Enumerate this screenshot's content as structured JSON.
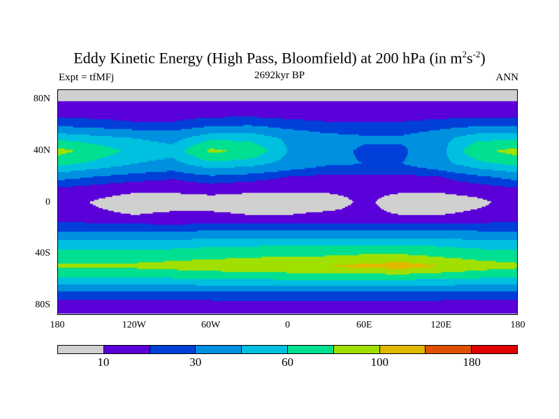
{
  "title": "Eddy Kinetic Energy (High Pass, Bloomfield) at 200 hPa (in m",
  "title_sup1": "2",
  "title_mid": "s",
  "title_sup2": "-2",
  "title_end": ")",
  "left_label": "Expt = tfMFj",
  "center_label": "2692kyr BP",
  "right_label": "ANN",
  "chart_data": {
    "type": "heatmap",
    "y_ticks": [
      {
        "lat": 80,
        "label": "80N"
      },
      {
        "lat": 40,
        "label": "40N"
      },
      {
        "lat": 0,
        "label": "0"
      },
      {
        "lat": -40,
        "label": "40S"
      },
      {
        "lat": -80,
        "label": "80S"
      }
    ],
    "x_ticks": [
      {
        "lon": -180,
        "label": "180"
      },
      {
        "lon": -120,
        "label": "120W"
      },
      {
        "lon": -60,
        "label": "60W"
      },
      {
        "lon": 0,
        "label": "0"
      },
      {
        "lon": 60,
        "label": "60E"
      },
      {
        "lon": 120,
        "label": "120E"
      },
      {
        "lon": 180,
        "label": "180"
      }
    ],
    "levels": [
      10,
      20,
      30,
      45,
      60,
      80,
      100,
      140,
      180
    ],
    "colorbar_labels": [
      {
        "index": 0,
        "label": "10"
      },
      {
        "index": 2,
        "label": "30"
      },
      {
        "index": 4,
        "label": "60"
      },
      {
        "index": 6,
        "label": "100"
      },
      {
        "index": 8,
        "label": "180"
      }
    ],
    "colors": [
      "#d0d0d0",
      "#5a00d8",
      "#0040d8",
      "#0090e0",
      "#00c0e0",
      "#00e090",
      "#a0e000",
      "#e0b800",
      "#e05000",
      "#e00000"
    ],
    "lats": [
      90,
      80,
      70,
      60,
      50,
      40,
      30,
      20,
      10,
      0,
      -10,
      -20,
      -30,
      -40,
      -50,
      -60,
      -70,
      -80,
      -90
    ],
    "lons": [
      -180,
      -150,
      -120,
      -90,
      -60,
      -30,
      0,
      30,
      60,
      90,
      120,
      150,
      180
    ],
    "values": [
      [
        5,
        5,
        5,
        5,
        5,
        5,
        5,
        5,
        5,
        5,
        5,
        5,
        5
      ],
      [
        9,
        9,
        9,
        9,
        9,
        9,
        9,
        9,
        9,
        9,
        9,
        9,
        9
      ],
      [
        15,
        15,
        15,
        15,
        15,
        15,
        15,
        15,
        15,
        15,
        15,
        15,
        15
      ],
      [
        28,
        25,
        22,
        22,
        28,
        30,
        25,
        22,
        22,
        22,
        25,
        28,
        28
      ],
      [
        55,
        50,
        45,
        40,
        55,
        55,
        42,
        35,
        32,
        32,
        40,
        55,
        55
      ],
      [
        88,
        70,
        55,
        50,
        85,
        75,
        45,
        35,
        28,
        28,
        40,
        75,
        88
      ],
      [
        65,
        55,
        45,
        40,
        55,
        50,
        40,
        32,
        30,
        30,
        40,
        55,
        65
      ],
      [
        35,
        30,
        25,
        22,
        28,
        25,
        20,
        18,
        18,
        18,
        20,
        28,
        35
      ],
      [
        18,
        14,
        12,
        12,
        14,
        12,
        12,
        12,
        12,
        12,
        12,
        14,
        18
      ],
      [
        14,
        9,
        5,
        5,
        5,
        5,
        5,
        5,
        12,
        5,
        5,
        8,
        14
      ],
      [
        14,
        12,
        10,
        12,
        12,
        10,
        10,
        12,
        12,
        10,
        10,
        12,
        14
      ],
      [
        25,
        25,
        25,
        22,
        25,
        25,
        25,
        25,
        25,
        25,
        25,
        25,
        25
      ],
      [
        45,
        45,
        45,
        45,
        50,
        50,
        50,
        50,
        50,
        50,
        50,
        45,
        45
      ],
      [
        65,
        65,
        65,
        68,
        70,
        72,
        75,
        75,
        78,
        78,
        72,
        68,
        65
      ],
      [
        85,
        85,
        85,
        88,
        92,
        95,
        98,
        100,
        105,
        110,
        100,
        90,
        85
      ],
      [
        55,
        55,
        55,
        58,
        60,
        60,
        62,
        62,
        62,
        62,
        60,
        58,
        55
      ],
      [
        28,
        28,
        28,
        28,
        30,
        30,
        30,
        30,
        30,
        30,
        30,
        28,
        28
      ],
      [
        15,
        15,
        15,
        15,
        15,
        15,
        15,
        15,
        15,
        15,
        15,
        15,
        15
      ],
      [
        8,
        8,
        8,
        8,
        8,
        8,
        8,
        8,
        8,
        8,
        8,
        8,
        8
      ]
    ]
  }
}
